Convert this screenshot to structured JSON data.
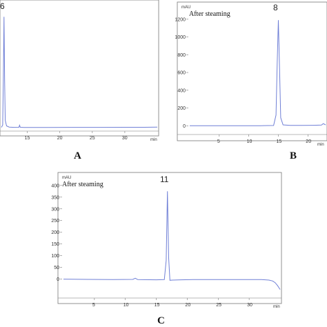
{
  "chart_data": [
    {
      "type": "line",
      "panel_label": "A",
      "annotation": "",
      "peak_label": "6",
      "x_unit": "min",
      "x_ticks": [
        15,
        20,
        25,
        30
      ],
      "xlim": [
        11,
        35
      ],
      "ylim": [
        -20,
        1300
      ],
      "line_color": "#6f7fd6",
      "series": [
        {
          "x": [
            11,
            11.2,
            11.3,
            11.4,
            11.5,
            11.6,
            11.8,
            12.2,
            13.0,
            13.7,
            13.8,
            13.9,
            14.5,
            18,
            22,
            26,
            30,
            33,
            35
          ],
          "y": [
            5,
            30,
            500,
            1180,
            500,
            80,
            20,
            8,
            5,
            6,
            28,
            6,
            4,
            4,
            5,
            5,
            6,
            6,
            7
          ]
        }
      ]
    },
    {
      "type": "line",
      "panel_label": "B",
      "annotation": "After steaming",
      "peak_label": "8",
      "x_unit": "min",
      "y_unit": "mAU",
      "x_ticks": [
        5,
        10,
        15,
        20
      ],
      "y_ticks": [
        0,
        200,
        400,
        600,
        800,
        1000,
        1200
      ],
      "xlim": [
        0,
        23
      ],
      "ylim": [
        -60,
        1300
      ],
      "line_color": "#6f7fd6",
      "series": [
        {
          "x": [
            0,
            3,
            6,
            9,
            12,
            14.2,
            14.6,
            14.8,
            15.0,
            15.2,
            15.4,
            15.8,
            17,
            19,
            21,
            22.3,
            22.6,
            23
          ],
          "y": [
            0,
            0,
            0,
            1,
            1,
            3,
            120,
            700,
            1190,
            650,
            90,
            10,
            4,
            4,
            5,
            8,
            24,
            10
          ]
        }
      ]
    },
    {
      "type": "line",
      "panel_label": "C",
      "annotation": "After steaming",
      "peak_label": "11",
      "x_unit": "min",
      "y_unit": "mAU",
      "x_ticks": [
        5,
        10,
        15,
        20,
        25,
        30
      ],
      "y_ticks": [
        0,
        50,
        100,
        150,
        200,
        250,
        300,
        350,
        400
      ],
      "xlim": [
        0,
        35
      ],
      "ylim": [
        -60,
        420
      ],
      "line_color": "#6f7fd6",
      "series": [
        {
          "x": [
            0,
            4,
            8,
            11.2,
            11.6,
            12.0,
            15,
            16.3,
            16.6,
            16.8,
            17.0,
            17.2,
            17.6,
            19,
            21,
            25,
            29,
            32,
            33.2,
            33.8,
            34.2,
            34.6,
            35
          ],
          "y": [
            0,
            -1,
            -2,
            -1,
            4,
            -2,
            -3,
            -2,
            80,
            375,
            90,
            -5,
            -4,
            -3,
            -2,
            -2,
            -2,
            -2,
            -4,
            -8,
            -15,
            -28,
            -44
          ]
        }
      ]
    }
  ]
}
